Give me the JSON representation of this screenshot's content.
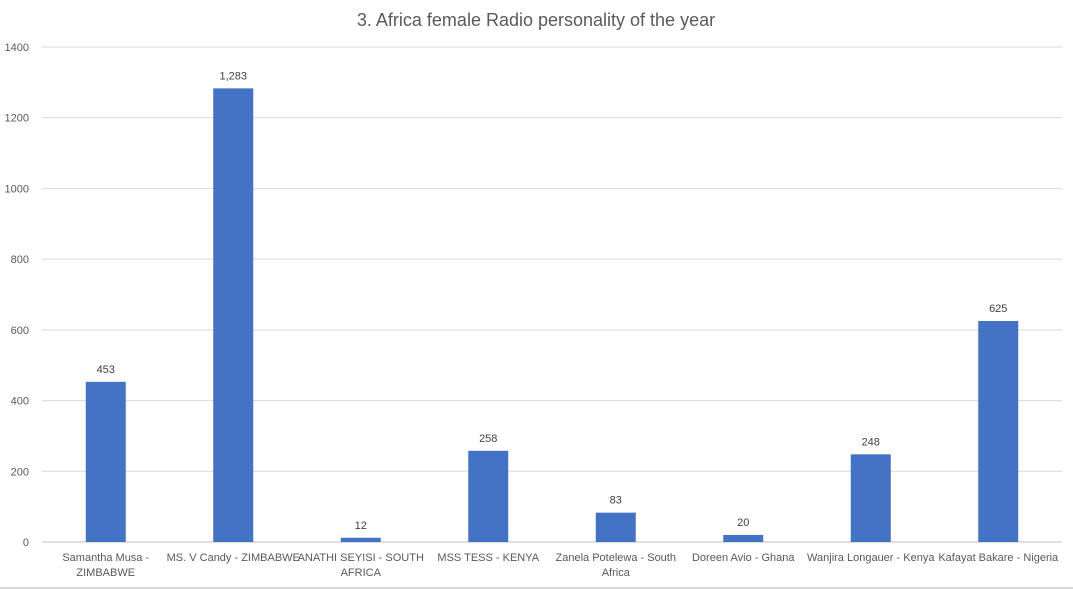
{
  "chart_data": {
    "type": "bar",
    "title": "3. Africa female Radio personality of the year",
    "xlabel": "",
    "ylabel": "",
    "ylim": [
      0,
      1400
    ],
    "yticks": [
      0,
      200,
      400,
      600,
      800,
      1000,
      1200,
      1400
    ],
    "grid": true,
    "legend": "none",
    "categories": [
      [
        "Samantha Musa -",
        "ZIMBABWE"
      ],
      [
        "MS. V Candy - ZIMBABWE"
      ],
      [
        "ANATHI SEYISI - SOUTH",
        "AFRICA"
      ],
      [
        "MSS TESS - KENYA"
      ],
      [
        "Zanela Potelewa - South",
        "Africa"
      ],
      [
        "Doreen Avio - Ghana"
      ],
      [
        "Wanjira Longauer - Kenya"
      ],
      [
        "Kafayat Bakare - Nigeria"
      ]
    ],
    "values": [
      453,
      1283,
      12,
      258,
      83,
      20,
      248,
      625
    ],
    "data_labels": [
      "453",
      "1,283",
      "12",
      "258",
      "83",
      "20",
      "248",
      "625"
    ],
    "bar_color": "#4472c4",
    "grid_color": "#d9d9d9"
  }
}
